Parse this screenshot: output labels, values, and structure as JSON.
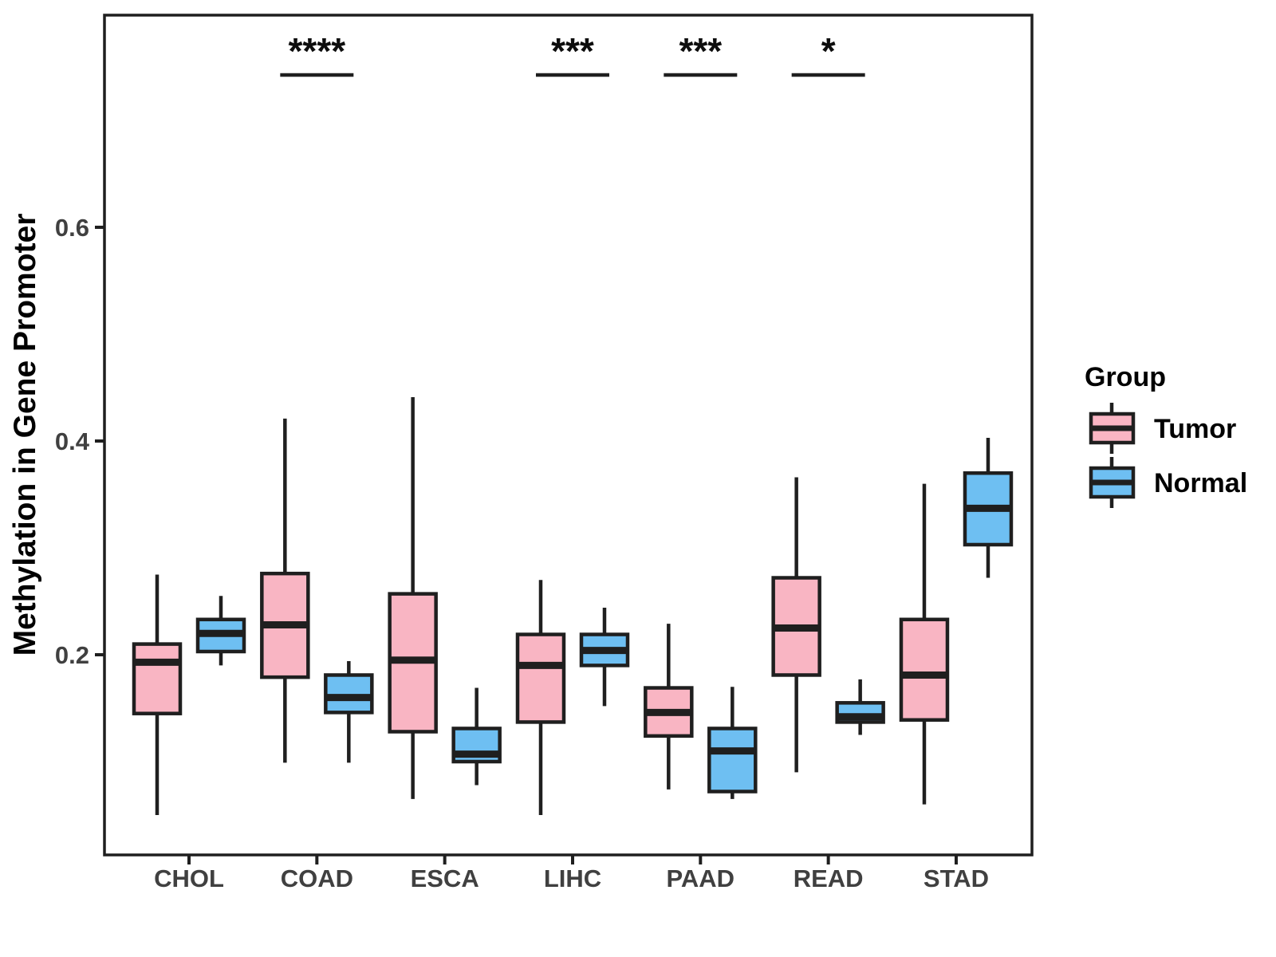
{
  "y_axis": {
    "label": "Methylation in Gene Promoter",
    "tick_labels": [
      "0.2",
      "0.4",
      "0.6"
    ],
    "tick_values": [
      0.2,
      0.4,
      0.6
    ]
  },
  "x_axis": {
    "categories": [
      "CHOL",
      "COAD",
      "ESCA",
      "LIHC",
      "PAAD",
      "READ",
      "STAD"
    ]
  },
  "legend": {
    "title": "Group",
    "items": [
      {
        "label": "Tumor",
        "color": "#F9B5C3"
      },
      {
        "label": "Normal",
        "color": "#6EBFF2"
      }
    ]
  },
  "significance": [
    {
      "category": "COAD",
      "stars": "****"
    },
    {
      "category": "LIHC",
      "stars": "***"
    },
    {
      "category": "PAAD",
      "stars": "***"
    },
    {
      "category": "READ",
      "stars": "*"
    }
  ],
  "style": {
    "line_color": "#1F1F1F",
    "tick_text_color": "#404040",
    "background": "#ffffff"
  },
  "chart_data": {
    "type": "boxplot",
    "title": "",
    "xlabel": "",
    "ylabel": "Methylation in Gene Promoter",
    "ylim": [
      0.013,
      0.8
    ],
    "grid": false,
    "legend_position": "right",
    "categories": [
      "CHOL",
      "COAD",
      "ESCA",
      "LIHC",
      "PAAD",
      "READ",
      "STAD"
    ],
    "stat_order": [
      "min",
      "q1",
      "median",
      "q3",
      "max"
    ],
    "series": [
      {
        "name": "Tumor",
        "color": "#F9B5C3",
        "stats": [
          [
            0.05,
            0.145,
            0.193,
            0.21,
            0.275
          ],
          [
            0.099,
            0.179,
            0.228,
            0.276,
            0.421
          ],
          [
            0.065,
            0.128,
            0.195,
            0.257,
            0.441
          ],
          [
            0.05,
            0.137,
            0.19,
            0.219,
            0.27
          ],
          [
            0.074,
            0.124,
            0.146,
            0.169,
            0.229
          ],
          [
            0.09,
            0.181,
            0.225,
            0.272,
            0.366
          ],
          [
            0.06,
            0.139,
            0.181,
            0.233,
            0.36
          ]
        ]
      },
      {
        "name": "Normal",
        "color": "#6EBFF2",
        "stats": [
          [
            0.19,
            0.203,
            0.22,
            0.233,
            0.255
          ],
          [
            0.099,
            0.146,
            0.16,
            0.181,
            0.194
          ],
          [
            0.078,
            0.1,
            0.107,
            0.131,
            0.169
          ],
          [
            0.152,
            0.19,
            0.204,
            0.219,
            0.244
          ],
          [
            0.065,
            0.072,
            0.11,
            0.131,
            0.17
          ],
          [
            0.125,
            0.137,
            0.142,
            0.155,
            0.177
          ],
          [
            0.272,
            0.303,
            0.337,
            0.37,
            0.403
          ]
        ]
      }
    ]
  }
}
